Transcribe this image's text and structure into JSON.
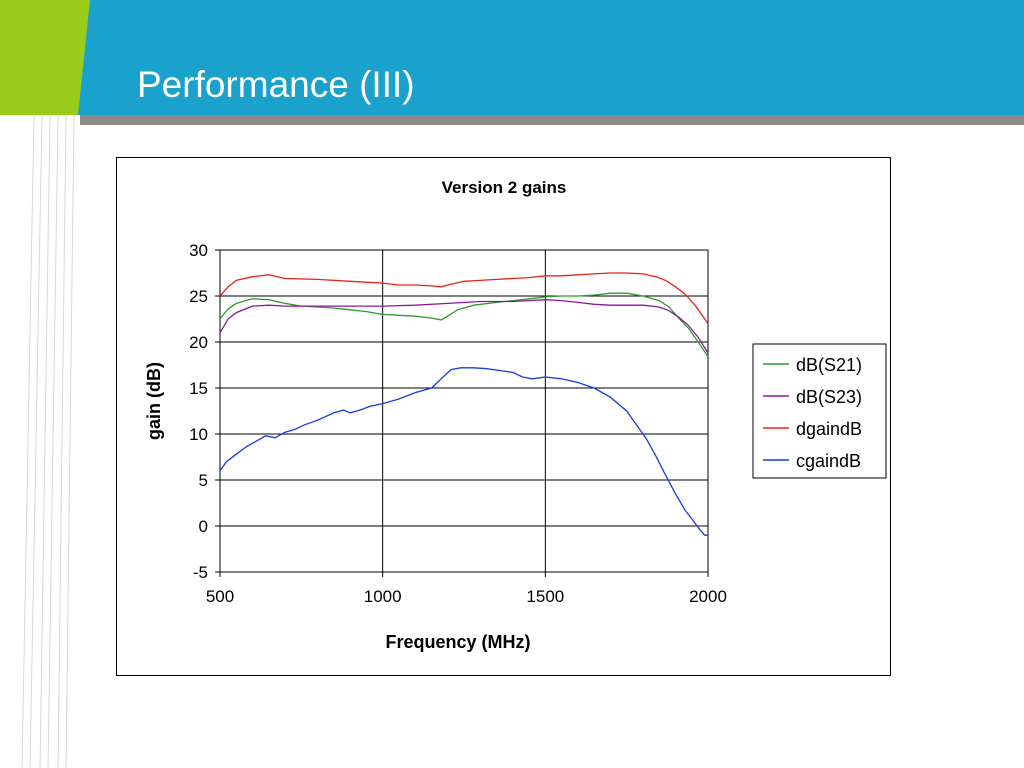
{
  "slide": {
    "title": "Performance (III)",
    "colors": {
      "header": "#1aa1cc",
      "accent": "#9acd1a",
      "band": "#8a8a8a"
    }
  },
  "chart_data": {
    "type": "line",
    "title": "Version 2 gains",
    "xlabel": "Frequency (MHz)",
    "ylabel": "gain (dB)",
    "xlim": [
      500,
      2000
    ],
    "ylim": [
      -5,
      30
    ],
    "xticks": [
      500,
      1000,
      1500,
      2000
    ],
    "yticks": [
      -5,
      0,
      5,
      10,
      15,
      20,
      25,
      30
    ],
    "grid": "horizontal and vertical major",
    "legend_position": "right",
    "series": [
      {
        "name": "dB(S21)",
        "color": "#2e9a2e",
        "x": [
          500,
          525,
          550,
          600,
          650,
          700,
          750,
          800,
          850,
          900,
          950,
          1000,
          1050,
          1100,
          1150,
          1180,
          1200,
          1230,
          1280,
          1350,
          1400,
          1450,
          1500,
          1550,
          1600,
          1650,
          1700,
          1750,
          1800,
          1850,
          1880,
          1910,
          1940,
          1970,
          2000
        ],
        "y": [
          22.5,
          23.6,
          24.2,
          24.7,
          24.6,
          24.2,
          23.9,
          23.8,
          23.7,
          23.5,
          23.3,
          23.0,
          22.9,
          22.8,
          22.6,
          22.4,
          22.8,
          23.5,
          24.0,
          24.3,
          24.5,
          24.7,
          24.9,
          25.0,
          25.0,
          25.1,
          25.3,
          25.3,
          25.0,
          24.5,
          23.8,
          22.6,
          21.5,
          20.0,
          18.4
        ]
      },
      {
        "name": "dB(S23)",
        "color": "#8b1a9b",
        "x": [
          500,
          525,
          550,
          600,
          650,
          700,
          800,
          900,
          1000,
          1100,
          1200,
          1300,
          1400,
          1500,
          1550,
          1600,
          1650,
          1700,
          1750,
          1800,
          1850,
          1880,
          1910,
          1940,
          1970,
          2000
        ],
        "y": [
          21.0,
          22.5,
          23.2,
          23.9,
          24.0,
          23.9,
          23.9,
          23.9,
          23.9,
          24.0,
          24.2,
          24.4,
          24.4,
          24.6,
          24.5,
          24.3,
          24.1,
          24.0,
          24.0,
          24.0,
          23.8,
          23.4,
          22.7,
          21.8,
          20.5,
          18.8
        ]
      },
      {
        "name": "dgaindB",
        "color": "#e8231a",
        "x": [
          500,
          525,
          550,
          600,
          650,
          700,
          800,
          900,
          1000,
          1050,
          1100,
          1150,
          1180,
          1200,
          1250,
          1300,
          1350,
          1400,
          1450,
          1500,
          1550,
          1600,
          1650,
          1700,
          1750,
          1800,
          1840,
          1870,
          1900,
          1930,
          1960,
          1980,
          2000
        ],
        "y": [
          25.0,
          26.0,
          26.7,
          27.1,
          27.3,
          26.9,
          26.8,
          26.6,
          26.4,
          26.2,
          26.2,
          26.1,
          26.0,
          26.2,
          26.6,
          26.7,
          26.8,
          26.9,
          27.0,
          27.2,
          27.2,
          27.3,
          27.4,
          27.5,
          27.5,
          27.4,
          27.1,
          26.7,
          26.0,
          25.2,
          24.0,
          23.0,
          22.0
        ]
      },
      {
        "name": "cgaindB",
        "color": "#1a3adb",
        "x": [
          500,
          520,
          550,
          580,
          610,
          640,
          670,
          700,
          730,
          760,
          800,
          850,
          880,
          900,
          930,
          960,
          1000,
          1050,
          1100,
          1150,
          1180,
          1210,
          1240,
          1280,
          1320,
          1360,
          1400,
          1430,
          1460,
          1500,
          1550,
          1600,
          1650,
          1700,
          1750,
          1780,
          1810,
          1840,
          1870,
          1900,
          1930,
          1950,
          1975,
          1990,
          2000
        ],
        "y": [
          6.0,
          7.0,
          7.8,
          8.6,
          9.2,
          9.8,
          9.6,
          10.2,
          10.5,
          11.0,
          11.5,
          12.3,
          12.6,
          12.3,
          12.6,
          13.0,
          13.3,
          13.8,
          14.5,
          15.0,
          16.0,
          17.0,
          17.2,
          17.2,
          17.1,
          16.9,
          16.7,
          16.2,
          16.0,
          16.2,
          16.0,
          15.6,
          15.0,
          14.0,
          12.5,
          11.0,
          9.5,
          7.6,
          5.5,
          3.5,
          1.7,
          0.8,
          -0.4,
          -1.0,
          -1.0
        ]
      }
    ]
  }
}
